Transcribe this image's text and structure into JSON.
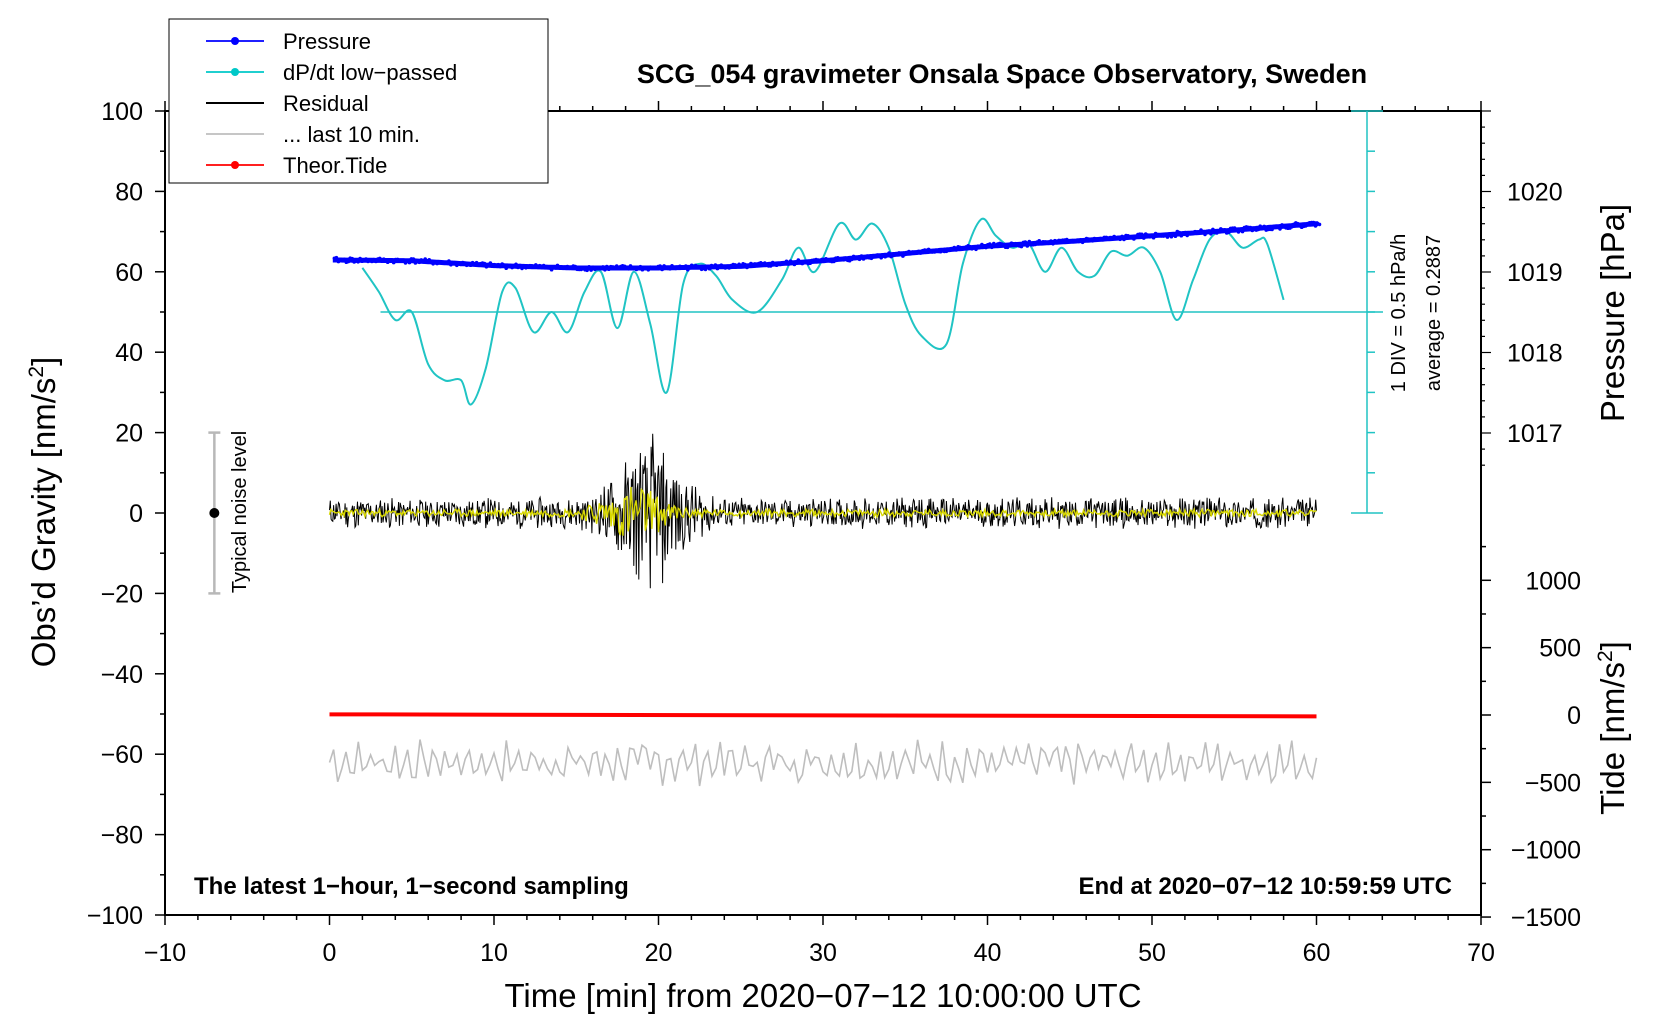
{
  "chart_data": {
    "type": "line",
    "title": "SCG_054 gravimeter Onsala Space Observatory, Sweden",
    "xlabel": "Time [min] from 2020−07−12 10:00:00 UTC",
    "ylabel_left": "Obs’d Gravity [nm/s",
    "ylabel_left_sup": "2",
    "ylabel_left_end": "]",
    "ylabel_right_top": "Pressure [hPa]",
    "ylabel_right_bottom": "Tide [nm/s",
    "ylabel_right_bottom_sup": "2",
    "ylabel_right_bottom_end": "]",
    "xlim": [
      -10,
      70
    ],
    "ylim": [
      -100,
      100
    ],
    "pressure_ylim": [
      1016,
      1021
    ],
    "tide_ylim": [
      -1500,
      1500
    ],
    "x_ticks": [
      -10,
      0,
      10,
      20,
      30,
      40,
      50,
      60,
      70
    ],
    "x_tick_labels": [
      "−10",
      "0",
      "10",
      "20",
      "30",
      "40",
      "50",
      "60",
      "70"
    ],
    "y_ticks": [
      -100,
      -80,
      -60,
      -40,
      -20,
      0,
      20,
      40,
      60,
      80,
      100
    ],
    "y_tick_labels": [
      "−100",
      "−80",
      "−60",
      "−40",
      "−20",
      "0",
      "20",
      "40",
      "60",
      "80",
      "100"
    ],
    "pressure_ticks": [
      1017,
      1018,
      1019,
      1020
    ],
    "pressure_tick_labels": [
      "1017",
      "1018",
      "1019",
      "1020"
    ],
    "tide_ticks": [
      -1500,
      -1000,
      -500,
      0,
      500,
      1000
    ],
    "tide_tick_labels": [
      "−1500",
      "−1000",
      "−500",
      "0",
      "500",
      "1000"
    ],
    "legend": [
      {
        "label": "Pressure",
        "color": "#0000ff",
        "marker": true
      },
      {
        "label": "dP/dt low−passed",
        "color": "#00c8c8",
        "marker": true
      },
      {
        "label": "Residual",
        "color": "#000000",
        "marker": false
      },
      {
        "label": "... last 10 min.",
        "color": "#bebebe",
        "marker": false
      },
      {
        "label": "Theor.Tide",
        "color": "#ff0000",
        "marker": true
      }
    ],
    "legend_position": "top-left",
    "series": [
      {
        "name": "Pressure",
        "axis": "pressure_hPa",
        "color": "#0000ff",
        "x": [
          0,
          5,
          10,
          15,
          20,
          25,
          30,
          35,
          40,
          45,
          50,
          55,
          60
        ],
        "y": [
          1019.15,
          1019.14,
          1019.08,
          1019.05,
          1019.05,
          1019.07,
          1019.14,
          1019.23,
          1019.32,
          1019.38,
          1019.45,
          1019.52,
          1019.6
        ]
      },
      {
        "name": "dP/dt low-passed",
        "axis": "gravity_units",
        "color": "#00c8c8",
        "x": [
          2,
          3,
          4,
          5,
          6,
          7,
          8,
          8.6,
          9.5,
          10.5,
          11.3,
          12.4,
          13.5,
          14.5,
          15.5,
          16.5,
          17.5,
          18.5,
          19.5,
          20.5,
          21.5,
          22.5,
          23.5,
          24.5,
          26,
          27.5,
          28.5,
          29.5,
          31,
          32,
          33,
          34,
          35,
          36,
          37.5,
          38.5,
          39.6,
          40.5,
          41.5,
          42.5,
          43.5,
          44.5,
          45.5,
          46.5,
          47.5,
          48.5,
          49.5,
          50.5,
          51.5,
          52.5,
          53.5,
          54.5,
          55.5,
          56.5,
          57,
          58
        ],
        "y": [
          61,
          55,
          48,
          50,
          37,
          33,
          33,
          27,
          36,
          55,
          56,
          45,
          50,
          45,
          55,
          60,
          46,
          60,
          47,
          30,
          57,
          62,
          59,
          53,
          50,
          58,
          66,
          60,
          72,
          68,
          72,
          66,
          52,
          44,
          42,
          62,
          73,
          69,
          66,
          67,
          60,
          66,
          60,
          59,
          65,
          64,
          66,
          60,
          48,
          58,
          68,
          70,
          66,
          68,
          67,
          53
        ]
      },
      {
        "name": "Residual",
        "axis": "gravity_units",
        "color": "#000000",
        "x_range": [
          0,
          60
        ],
        "typical_amplitude": 4,
        "peak_amplitude": 21,
        "peak_x": 19.5
      },
      {
        "name": "Residual (yellow low-pass)",
        "axis": "gravity_units",
        "color": "#d8d800",
        "x_range": [
          0,
          60
        ],
        "typical_amplitude": 1,
        "peak_amplitude": 8,
        "peak_x": 18.5
      },
      {
        "name": "... last 10 min.",
        "axis": "gravity_units",
        "color": "#bebebe",
        "x_range": [
          0,
          60
        ],
        "center": -62,
        "amplitude": 4
      },
      {
        "name": "Theor.Tide",
        "axis": "tide_nm_s2",
        "color": "#ff0000",
        "x": [
          0,
          60
        ],
        "y": [
          5,
          -10
        ]
      }
    ],
    "cyan_scale": {
      "label_1": "1 DIV = 0.5 hPa/h",
      "label_2": "average = 0.2887",
      "baseline": 50
    },
    "noise_indicator": {
      "label": "Typical noise level",
      "x": -7,
      "center": 0,
      "range": [
        -20,
        20
      ]
    },
    "annotation_left": "The latest 1−hour, 1−second sampling",
    "annotation_right": "End at 2020−07−12 10:59:59 UTC"
  }
}
